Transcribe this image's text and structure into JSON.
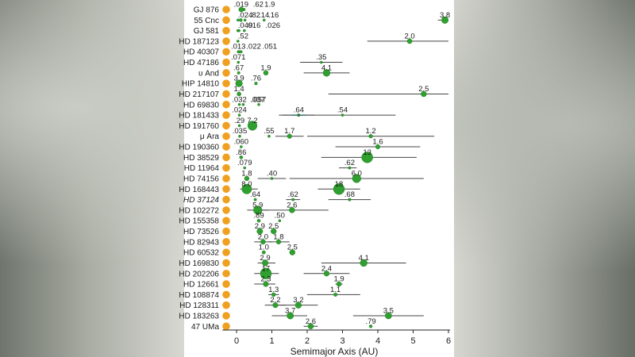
{
  "chart_data": {
    "type": "scatter",
    "title": "",
    "xlabel": "Semimajor Axis (AU)",
    "ylabel": "",
    "xlim": [
      -0.4,
      6
    ],
    "xticks": [
      0,
      1,
      2,
      3,
      4,
      5,
      6
    ],
    "grid": false,
    "legend": "none",
    "colors": {
      "star": "#f0a020",
      "planet": "#2fa02f",
      "planet_edge": "#1c6e1c",
      "range": "#444444",
      "range_highlight": "#7fd8ee"
    },
    "systems": [
      {
        "name": "GJ 876",
        "planets": [
          {
            "a": 0.13,
            "label": ".019"
          },
          {
            "a": 0.21,
            "label": ".62"
          },
          {
            "a": 0.13,
            "label": "1.9"
          }
        ]
      },
      {
        "name": "55 Cnc",
        "planets": [
          {
            "a": 0.04,
            "label": ".024"
          },
          {
            "a": 0.12,
            "label": ".82"
          },
          {
            "a": 0.24,
            "label": ".16"
          },
          {
            "a": 0.78,
            "label": ".14"
          },
          {
            "a": 5.9,
            "label": "3.8",
            "range": [
              5.7,
              6.0
            ]
          }
        ]
      },
      {
        "name": "GJ 581",
        "planets": [
          {
            "a": 0.04,
            "label": ".049"
          },
          {
            "a": 0.07,
            "label": ".016"
          },
          {
            "a": 0.22,
            "label": ".026"
          }
        ]
      },
      {
        "name": "HD 187123",
        "planets": [
          {
            "a": 0.04,
            "label": ".52"
          },
          {
            "a": 4.9,
            "label": "2.0",
            "range": [
              3.7,
              6.0
            ]
          }
        ]
      },
      {
        "name": "HD 40307",
        "planets": [
          {
            "a": 0.05,
            "label": ".013"
          },
          {
            "a": 0.08,
            "label": ".022"
          },
          {
            "a": 0.13,
            "label": ".051"
          }
        ]
      },
      {
        "name": "HD 47186",
        "planets": [
          {
            "a": 0.05,
            "label": ".071"
          },
          {
            "a": 2.4,
            "label": ".35",
            "range": [
              1.8,
              3.0
            ]
          }
        ]
      },
      {
        "name": "υ And",
        "planets": [
          {
            "a": 0.06,
            "label": ".67"
          },
          {
            "a": 0.83,
            "label": "1.9"
          },
          {
            "a": 2.55,
            "label": "4.1",
            "range": [
              1.9,
              3.2
            ]
          }
        ]
      },
      {
        "name": "HIP 14810",
        "planets": [
          {
            "a": 0.07,
            "label": "3.9"
          },
          {
            "a": 0.55,
            "label": ".76"
          }
        ]
      },
      {
        "name": "HD 217107",
        "planets": [
          {
            "a": 0.07,
            "label": "1.4"
          },
          {
            "a": 5.3,
            "label": "2.5",
            "range": [
              2.6,
              6.0
            ]
          }
        ]
      },
      {
        "name": "HD 69830",
        "planets": [
          {
            "a": 0.08,
            "label": ".032"
          },
          {
            "a": 0.19,
            "label": ".037"
          },
          {
            "a": 0.63,
            "label": ".057"
          }
        ]
      },
      {
        "name": "HD 181433",
        "planets": [
          {
            "a": 0.08,
            "label": ".024"
          },
          {
            "a": 1.76,
            "label": ".64",
            "range": [
              1.3,
              2.2
            ],
            "highlight": true
          },
          {
            "a": 3.0,
            "label": ".54",
            "range": [
              1.2,
              4.5
            ]
          }
        ]
      },
      {
        "name": "HD 191760",
        "planets": [
          {
            "a": 0.08,
            "label": ".29"
          },
          {
            "a": 0.45,
            "label": "7.2"
          }
        ]
      },
      {
        "name": "μ Ara",
        "planets": [
          {
            "a": 0.09,
            "label": ".035"
          },
          {
            "a": 0.92,
            "label": ".55"
          },
          {
            "a": 1.5,
            "label": "1.7",
            "range": [
              1.1,
              1.9
            ]
          },
          {
            "a": 3.8,
            "label": "1.2",
            "range": [
              2.0,
              5.6
            ]
          }
        ]
      },
      {
        "name": "HD 190360",
        "planets": [
          {
            "a": 0.13,
            "label": ".060"
          },
          {
            "a": 4.0,
            "label": "1.6",
            "range": [
              2.8,
              5.2
            ]
          }
        ]
      },
      {
        "name": "HD 38529",
        "planets": [
          {
            "a": 0.13,
            "label": ".86"
          },
          {
            "a": 3.7,
            "label": "13",
            "range": [
              2.4,
              5.1
            ]
          }
        ]
      },
      {
        "name": "HD 11964",
        "planets": [
          {
            "a": 0.23,
            "label": ".079"
          },
          {
            "a": 3.2,
            "label": ".62",
            "range": [
              2.9,
              3.4
            ]
          }
        ]
      },
      {
        "name": "HD 74156",
        "planets": [
          {
            "a": 0.29,
            "label": "1.8"
          },
          {
            "a": 1.0,
            "label": ".40",
            "range": [
              0.6,
              1.4
            ]
          },
          {
            "a": 3.4,
            "label": "6.0",
            "range": [
              1.5,
              5.3
            ]
          }
        ]
      },
      {
        "name": "HD 168443",
        "planets": [
          {
            "a": 0.29,
            "label": "8.0",
            "range": [
              0.1,
              0.6
            ]
          },
          {
            "a": 2.9,
            "label": "18",
            "range": [
              2.3,
              3.5
            ]
          }
        ]
      },
      {
        "name": "HD 37124",
        "italic": true,
        "planets": [
          {
            "a": 0.53,
            "label": ".64"
          },
          {
            "a": 1.6,
            "label": ".62",
            "range": [
              1.4,
              1.8
            ]
          },
          {
            "a": 3.2,
            "label": ".68",
            "range": [
              2.6,
              3.8
            ]
          }
        ]
      },
      {
        "name": "HD 102272",
        "planets": [
          {
            "a": 0.6,
            "label": "5.9",
            "range": [
              0.3,
              0.9
            ]
          },
          {
            "a": 1.57,
            "label": "2.6",
            "range": [
              0.7,
              2.6
            ]
          }
        ]
      },
      {
        "name": "HD 155358",
        "planets": [
          {
            "a": 0.63,
            "label": ".89"
          },
          {
            "a": 1.22,
            "label": ".50"
          }
        ]
      },
      {
        "name": "HD 73526",
        "planets": [
          {
            "a": 0.66,
            "label": "2.9"
          },
          {
            "a": 1.05,
            "label": "2.5"
          }
        ]
      },
      {
        "name": "HD 82943",
        "planets": [
          {
            "a": 0.75,
            "label": "2.0",
            "range": [
              0.5,
              1.0
            ]
          },
          {
            "a": 1.19,
            "label": "1.8",
            "range": [
              0.9,
              1.5
            ]
          }
        ]
      },
      {
        "name": "HD 60532",
        "planets": [
          {
            "a": 0.77,
            "label": "1.0"
          },
          {
            "a": 1.58,
            "label": "2.5"
          }
        ]
      },
      {
        "name": "HD 169830",
        "planets": [
          {
            "a": 0.81,
            "label": "2.9",
            "range": [
              0.6,
              1.1
            ]
          },
          {
            "a": 3.6,
            "label": "4.1",
            "range": [
              2.4,
              4.8
            ]
          }
        ]
      },
      {
        "name": "HD 202206",
        "planets": [
          {
            "a": 0.83,
            "label": "17",
            "range": [
              0.5,
              1.2
            ]
          },
          {
            "a": 2.55,
            "label": "2.4",
            "range": [
              1.9,
              3.2
            ]
          }
        ]
      },
      {
        "name": "HD 12661",
        "planets": [
          {
            "a": 0.83,
            "label": "2.3",
            "range": [
              0.5,
              1.1
            ]
          },
          {
            "a": 2.9,
            "label": "1.9",
            "range": [
              2.8,
              3.0
            ]
          }
        ]
      },
      {
        "name": "HD 108874",
        "planets": [
          {
            "a": 1.05,
            "label": "1.3",
            "range": [
              0.9,
              1.2
            ]
          },
          {
            "a": 2.8,
            "label": "1.1",
            "range": [
              2.0,
              3.5
            ]
          }
        ]
      },
      {
        "name": "HD 128311",
        "planets": [
          {
            "a": 1.1,
            "label": "2.2",
            "range": [
              0.8,
              1.4
            ]
          },
          {
            "a": 1.75,
            "label": "3.2",
            "range": [
              1.2,
              2.3
            ]
          }
        ]
      },
      {
        "name": "HD 183263",
        "planets": [
          {
            "a": 1.52,
            "label": "3.7",
            "range": [
              1.0,
              2.0
            ]
          },
          {
            "a": 4.3,
            "label": "3.5",
            "range": [
              3.3,
              5.3
            ]
          }
        ]
      },
      {
        "name": "47 UMa",
        "planets": [
          {
            "a": 2.1,
            "label": "2.6",
            "range": [
              1.9,
              2.3
            ]
          },
          {
            "a": 3.8,
            "label": ".79"
          }
        ]
      }
    ]
  }
}
